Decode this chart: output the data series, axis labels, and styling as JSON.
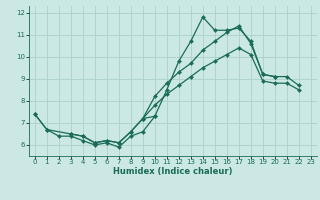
{
  "xlabel": "Humidex (Indice chaleur)",
  "bg_color": "#cce8e4",
  "line_color": "#1a6b5a",
  "grid_color": "#aad0cb",
  "xlim": [
    -0.5,
    23.5
  ],
  "ylim": [
    5.5,
    12.3
  ],
  "xticks": [
    0,
    1,
    2,
    3,
    4,
    5,
    6,
    7,
    8,
    9,
    10,
    11,
    12,
    13,
    14,
    15,
    16,
    17,
    18,
    19,
    20,
    21,
    22,
    23
  ],
  "yticks": [
    6,
    7,
    8,
    9,
    10,
    11,
    12
  ],
  "series": [
    {
      "x": [
        0,
        1,
        2,
        3,
        4,
        5,
        6,
        7,
        8,
        9,
        10,
        11,
        12,
        13,
        14,
        15,
        16,
        17,
        18,
        19,
        20
      ],
      "y": [
        7.4,
        6.7,
        6.4,
        6.4,
        6.2,
        6.0,
        6.1,
        5.9,
        6.4,
        6.6,
        7.3,
        8.5,
        9.8,
        10.7,
        11.8,
        11.2,
        11.2,
        11.3,
        10.7,
        9.2,
        9.1
      ]
    },
    {
      "x": [
        0,
        1,
        3,
        4,
        5,
        6,
        7,
        8,
        9,
        10,
        11,
        12,
        13,
        14,
        15,
        16,
        17,
        18,
        19,
        20,
        21,
        22
      ],
      "y": [
        7.4,
        6.7,
        6.5,
        6.4,
        6.1,
        6.2,
        6.1,
        6.6,
        7.2,
        7.8,
        8.3,
        8.7,
        9.1,
        9.5,
        9.8,
        10.1,
        10.4,
        10.1,
        8.9,
        8.8,
        8.8,
        8.5
      ]
    },
    {
      "x": [
        9,
        10,
        11,
        12,
        13,
        14,
        15,
        16,
        17,
        18,
        19,
        20,
        21,
        22
      ],
      "y": [
        7.2,
        8.2,
        8.8,
        9.3,
        9.7,
        10.3,
        10.7,
        11.1,
        11.4,
        10.6,
        9.2,
        9.1,
        9.1,
        8.7
      ]
    },
    {
      "x": [
        3,
        4,
        5,
        6,
        7,
        8,
        9,
        10
      ],
      "y": [
        6.5,
        6.4,
        6.1,
        6.2,
        6.1,
        6.6,
        7.2,
        7.3
      ]
    }
  ]
}
